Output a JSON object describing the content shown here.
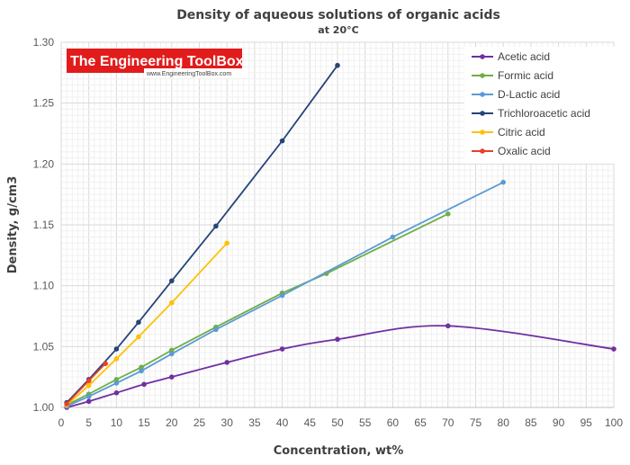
{
  "chart_data": {
    "type": "line",
    "title": "Density of aqueous solutions of organic acids",
    "subtitle": "at 20°C",
    "xlabel": "Concentration, wt%",
    "ylabel": "Density, g/cm3",
    "xlim": [
      0,
      100
    ],
    "ylim": [
      1.0,
      1.3
    ],
    "xticks": [
      "0",
      "5",
      "10",
      "15",
      "20",
      "25",
      "30",
      "35",
      "40",
      "45",
      "50",
      "55",
      "60",
      "65",
      "70",
      "75",
      "80",
      "85",
      "90",
      "95",
      "100"
    ],
    "yticks": [
      "1.00",
      "1.05",
      "1.10",
      "1.15",
      "1.20",
      "1.25",
      "1.30"
    ],
    "grid": true,
    "legend_position": "top-right",
    "series": [
      {
        "name": "Acetic acid",
        "color": "#7030a0",
        "smooth": true,
        "points": [
          [
            1,
            1.0
          ],
          [
            5,
            1.005
          ],
          [
            10,
            1.012
          ],
          [
            15,
            1.019
          ],
          [
            20,
            1.025
          ],
          [
            30,
            1.037
          ],
          [
            40,
            1.048
          ],
          [
            50,
            1.056
          ],
          [
            70,
            1.067
          ],
          [
            100,
            1.048
          ]
        ]
      },
      {
        "name": "Formic acid",
        "color": "#70ad47",
        "smooth": false,
        "points": [
          [
            1,
            1.002
          ],
          [
            5,
            1.011
          ],
          [
            10,
            1.023
          ],
          [
            14.5,
            1.033
          ],
          [
            20,
            1.047
          ],
          [
            28,
            1.066
          ],
          [
            40,
            1.094
          ],
          [
            48,
            1.11
          ],
          [
            70,
            1.159
          ]
        ]
      },
      {
        "name": "D-Lactic acid",
        "color": "#5b9bd5",
        "smooth": false,
        "points": [
          [
            1,
            1.001
          ],
          [
            5,
            1.009
          ],
          [
            10,
            1.02
          ],
          [
            14.5,
            1.03
          ],
          [
            20,
            1.044
          ],
          [
            28,
            1.064
          ],
          [
            40,
            1.092
          ],
          [
            60,
            1.14
          ],
          [
            80,
            1.185
          ]
        ]
      },
      {
        "name": "Trichloroacetic acid",
        "color": "#264478",
        "smooth": false,
        "points": [
          [
            1,
            1.004
          ],
          [
            5,
            1.023
          ],
          [
            10,
            1.048
          ],
          [
            14,
            1.07
          ],
          [
            20,
            1.104
          ],
          [
            28,
            1.149
          ],
          [
            40,
            1.219
          ],
          [
            50,
            1.281
          ]
        ]
      },
      {
        "name": "Citric acid",
        "color": "#ffc000",
        "smooth": false,
        "points": [
          [
            1,
            1.002
          ],
          [
            5,
            1.018
          ],
          [
            10,
            1.04
          ],
          [
            14,
            1.058
          ],
          [
            20,
            1.086
          ],
          [
            30,
            1.135
          ]
        ]
      },
      {
        "name": "Oxalic acid",
        "color": "#e8402a",
        "smooth": false,
        "points": [
          [
            1,
            1.003
          ],
          [
            5,
            1.022
          ],
          [
            8,
            1.036
          ]
        ]
      }
    ]
  },
  "logo": {
    "name": "The Engineering ToolBox",
    "url": "www.EngineeringToolBox.com",
    "bg_color": "#e21b1b"
  }
}
